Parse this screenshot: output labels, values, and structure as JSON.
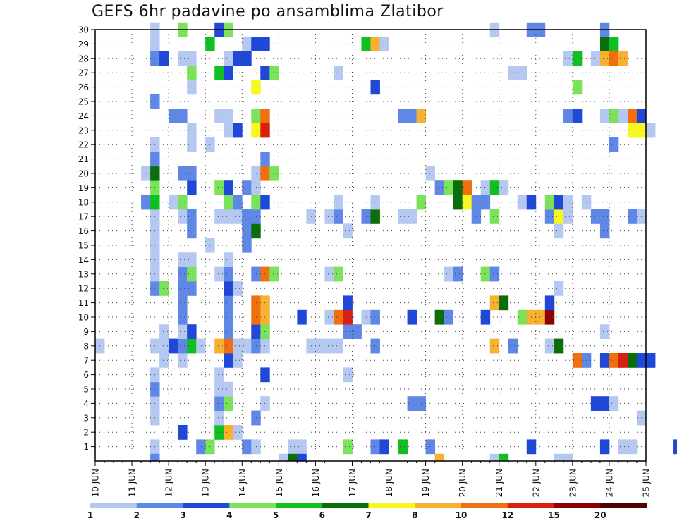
{
  "chart_data": {
    "type": "heatmap",
    "title": "GEFS 6hr padavine po ansamblima Zlatibor",
    "x_ticks": [
      "10 JUN",
      "11 JUN",
      "12 JUN",
      "13 JUN",
      "14 JUN",
      "15 JUN",
      "16 JUN",
      "17 JUN",
      "18 JUN",
      "19 JUN",
      "20 JUN",
      "21 JUN",
      "22 JUN",
      "23 JUN",
      "24 JUN",
      "25 JUN"
    ],
    "y_ticks": [
      1,
      2,
      3,
      4,
      5,
      6,
      7,
      8,
      9,
      10,
      11,
      12,
      13,
      14,
      15,
      16,
      17,
      18,
      19,
      20,
      21,
      22,
      23,
      24,
      25,
      26,
      27,
      28,
      29,
      30
    ],
    "y_range": [
      0,
      30
    ],
    "grid": "dotted",
    "steps_per_day": 4,
    "colorbar": {
      "labels": [
        "1",
        "2",
        "3",
        "4",
        "5",
        "6",
        "7",
        "8",
        "10",
        "12",
        "15",
        "20"
      ],
      "colors": [
        "#b5c8f2",
        "#5f88e6",
        "#1f48d8",
        "#7ae35a",
        "#10c020",
        "#0a6e0a",
        "#f8f820",
        "#f8b030",
        "#f07010",
        "#d82010",
        "#900000",
        "#500000"
      ]
    },
    "cells": [
      [
        1,
        6,
        1
      ],
      [
        1,
        11,
        2
      ],
      [
        1,
        12,
        4
      ],
      [
        1,
        16,
        2
      ],
      [
        1,
        17,
        1
      ],
      [
        1,
        21,
        1
      ],
      [
        1,
        22,
        1
      ],
      [
        1,
        27,
        4
      ],
      [
        1,
        30,
        2
      ],
      [
        1,
        31,
        3
      ],
      [
        1,
        33,
        5
      ],
      [
        1,
        36,
        2
      ],
      [
        1,
        47,
        3
      ],
      [
        1,
        55,
        3
      ],
      [
        1,
        57,
        1
      ],
      [
        1,
        58,
        1
      ],
      [
        1,
        63,
        3
      ],
      [
        1,
        70,
        1
      ],
      [
        1,
        71,
        2
      ],
      [
        1,
        72,
        2
      ],
      [
        2,
        9,
        3
      ],
      [
        2,
        13,
        5
      ],
      [
        2,
        14,
        8
      ],
      [
        2,
        15,
        1
      ],
      [
        3,
        6,
        1
      ],
      [
        3,
        13,
        1
      ],
      [
        3,
        17,
        2
      ],
      [
        3,
        59,
        1
      ],
      [
        4,
        6,
        1
      ],
      [
        4,
        13,
        2
      ],
      [
        4,
        14,
        4
      ],
      [
        4,
        18,
        1
      ],
      [
        4,
        34,
        2
      ],
      [
        4,
        35,
        2
      ],
      [
        4,
        54,
        3
      ],
      [
        4,
        55,
        3
      ],
      [
        4,
        56,
        1
      ],
      [
        5,
        6,
        2
      ],
      [
        5,
        13,
        1
      ],
      [
        5,
        14,
        1
      ],
      [
        6,
        6,
        1
      ],
      [
        6,
        13,
        1
      ],
      [
        6,
        18,
        3
      ],
      [
        6,
        27,
        1
      ],
      [
        7,
        7,
        1
      ],
      [
        7,
        9,
        1
      ],
      [
        7,
        14,
        3
      ],
      [
        7,
        15,
        1
      ],
      [
        7,
        52,
        9
      ],
      [
        7,
        53,
        2
      ],
      [
        7,
        55,
        3
      ],
      [
        7,
        56,
        9
      ],
      [
        7,
        57,
        10
      ],
      [
        7,
        58,
        6
      ],
      [
        7,
        59,
        3
      ],
      [
        7,
        60,
        3
      ],
      [
        8,
        0,
        1
      ],
      [
        8,
        6,
        1
      ],
      [
        8,
        7,
        1
      ],
      [
        8,
        8,
        3
      ],
      [
        8,
        9,
        2
      ],
      [
        8,
        10,
        5
      ],
      [
        8,
        11,
        1
      ],
      [
        8,
        13,
        8
      ],
      [
        8,
        14,
        9
      ],
      [
        8,
        15,
        1
      ],
      [
        8,
        16,
        1
      ],
      [
        8,
        17,
        2
      ],
      [
        8,
        18,
        1
      ],
      [
        8,
        23,
        1
      ],
      [
        8,
        24,
        1
      ],
      [
        8,
        25,
        1
      ],
      [
        8,
        26,
        1
      ],
      [
        8,
        30,
        2
      ],
      [
        8,
        43,
        8
      ],
      [
        8,
        45,
        2
      ],
      [
        8,
        49,
        1
      ],
      [
        8,
        50,
        6
      ],
      [
        9,
        7,
        1
      ],
      [
        9,
        9,
        1
      ],
      [
        9,
        10,
        3
      ],
      [
        9,
        14,
        2
      ],
      [
        9,
        17,
        3
      ],
      [
        9,
        18,
        4
      ],
      [
        9,
        27,
        2
      ],
      [
        9,
        28,
        2
      ],
      [
        9,
        55,
        1
      ],
      [
        10,
        9,
        2
      ],
      [
        10,
        14,
        2
      ],
      [
        10,
        17,
        9
      ],
      [
        10,
        18,
        8
      ],
      [
        10,
        22,
        3
      ],
      [
        10,
        25,
        1
      ],
      [
        10,
        26,
        9
      ],
      [
        10,
        27,
        10
      ],
      [
        10,
        29,
        1
      ],
      [
        10,
        30,
        2
      ],
      [
        10,
        34,
        3
      ],
      [
        10,
        37,
        6
      ],
      [
        10,
        38,
        2
      ],
      [
        10,
        42,
        3
      ],
      [
        10,
        46,
        4
      ],
      [
        10,
        47,
        8
      ],
      [
        10,
        48,
        8
      ],
      [
        10,
        49,
        11
      ],
      [
        11,
        9,
        2
      ],
      [
        11,
        14,
        2
      ],
      [
        11,
        17,
        9
      ],
      [
        11,
        18,
        8
      ],
      [
        11,
        27,
        3
      ],
      [
        11,
        43,
        8
      ],
      [
        11,
        44,
        6
      ],
      [
        11,
        49,
        3
      ],
      [
        12,
        6,
        2
      ],
      [
        12,
        7,
        4
      ],
      [
        12,
        9,
        2
      ],
      [
        12,
        10,
        2
      ],
      [
        12,
        14,
        3
      ],
      [
        12,
        15,
        1
      ],
      [
        12,
        50,
        1
      ],
      [
        13,
        6,
        1
      ],
      [
        13,
        9,
        2
      ],
      [
        13,
        10,
        4
      ],
      [
        13,
        13,
        1
      ],
      [
        13,
        14,
        2
      ],
      [
        13,
        17,
        2
      ],
      [
        13,
        18,
        9
      ],
      [
        13,
        19,
        4
      ],
      [
        13,
        25,
        1
      ],
      [
        13,
        26,
        4
      ],
      [
        13,
        38,
        1
      ],
      [
        13,
        39,
        2
      ],
      [
        13,
        42,
        4
      ],
      [
        13,
        43,
        2
      ],
      [
        14,
        6,
        1
      ],
      [
        14,
        9,
        1
      ],
      [
        14,
        10,
        1
      ],
      [
        14,
        14,
        1
      ],
      [
        15,
        6,
        1
      ],
      [
        15,
        12,
        1
      ],
      [
        15,
        16,
        2
      ],
      [
        16,
        6,
        1
      ],
      [
        16,
        10,
        2
      ],
      [
        16,
        16,
        2
      ],
      [
        16,
        17,
        6
      ],
      [
        16,
        27,
        1
      ],
      [
        16,
        50,
        1
      ],
      [
        16,
        55,
        2
      ],
      [
        17,
        6,
        1
      ],
      [
        17,
        9,
        1
      ],
      [
        17,
        10,
        2
      ],
      [
        17,
        13,
        1
      ],
      [
        17,
        14,
        1
      ],
      [
        17,
        15,
        1
      ],
      [
        17,
        16,
        2
      ],
      [
        17,
        17,
        2
      ],
      [
        17,
        23,
        1
      ],
      [
        17,
        25,
        1
      ],
      [
        17,
        26,
        2
      ],
      [
        17,
        29,
        2
      ],
      [
        17,
        30,
        6
      ],
      [
        17,
        33,
        1
      ],
      [
        17,
        34,
        1
      ],
      [
        17,
        41,
        2
      ],
      [
        17,
        43,
        4
      ],
      [
        17,
        49,
        2
      ],
      [
        17,
        50,
        7
      ],
      [
        17,
        51,
        1
      ],
      [
        17,
        54,
        2
      ],
      [
        17,
        55,
        2
      ],
      [
        17,
        58,
        2
      ],
      [
        17,
        59,
        1
      ],
      [
        18,
        5,
        2
      ],
      [
        18,
        6,
        5
      ],
      [
        18,
        8,
        1
      ],
      [
        18,
        9,
        4
      ],
      [
        18,
        14,
        4
      ],
      [
        18,
        15,
        2
      ],
      [
        18,
        17,
        4
      ],
      [
        18,
        18,
        3
      ],
      [
        18,
        26,
        1
      ],
      [
        18,
        30,
        1
      ],
      [
        18,
        35,
        4
      ],
      [
        18,
        39,
        6
      ],
      [
        18,
        40,
        7
      ],
      [
        18,
        41,
        2
      ],
      [
        18,
        42,
        2
      ],
      [
        18,
        46,
        1
      ],
      [
        18,
        47,
        3
      ],
      [
        18,
        49,
        4
      ],
      [
        18,
        50,
        3
      ],
      [
        18,
        51,
        1
      ],
      [
        18,
        53,
        1
      ],
      [
        19,
        6,
        4
      ],
      [
        19,
        10,
        3
      ],
      [
        19,
        13,
        4
      ],
      [
        19,
        14,
        3
      ],
      [
        19,
        16,
        2
      ],
      [
        19,
        17,
        1
      ],
      [
        19,
        37,
        2
      ],
      [
        19,
        38,
        4
      ],
      [
        19,
        39,
        6
      ],
      [
        19,
        40,
        9
      ],
      [
        19,
        42,
        1
      ],
      [
        19,
        43,
        5
      ],
      [
        19,
        44,
        1
      ],
      [
        20,
        5,
        1
      ],
      [
        20,
        6,
        6
      ],
      [
        20,
        9,
        2
      ],
      [
        20,
        10,
        2
      ],
      [
        20,
        17,
        1
      ],
      [
        20,
        18,
        9
      ],
      [
        20,
        19,
        4
      ],
      [
        20,
        36,
        1
      ],
      [
        21,
        6,
        2
      ],
      [
        21,
        18,
        2
      ],
      [
        22,
        6,
        1
      ],
      [
        22,
        10,
        1
      ],
      [
        22,
        12,
        1
      ],
      [
        22,
        56,
        2
      ],
      [
        23,
        10,
        1
      ],
      [
        23,
        14,
        1
      ],
      [
        23,
        15,
        3
      ],
      [
        23,
        17,
        7
      ],
      [
        23,
        18,
        10
      ],
      [
        23,
        58,
        7
      ],
      [
        23,
        59,
        7
      ],
      [
        23,
        60,
        1
      ],
      [
        24,
        8,
        2
      ],
      [
        24,
        9,
        2
      ],
      [
        24,
        13,
        1
      ],
      [
        24,
        14,
        1
      ],
      [
        24,
        17,
        4
      ],
      [
        24,
        18,
        9
      ],
      [
        24,
        33,
        2
      ],
      [
        24,
        34,
        2
      ],
      [
        24,
        35,
        8
      ],
      [
        24,
        51,
        2
      ],
      [
        24,
        52,
        3
      ],
      [
        24,
        55,
        1
      ],
      [
        24,
        56,
        4
      ],
      [
        24,
        57,
        1
      ],
      [
        24,
        58,
        9
      ],
      [
        24,
        59,
        3
      ],
      [
        25,
        6,
        2
      ],
      [
        26,
        10,
        1
      ],
      [
        26,
        17,
        7
      ],
      [
        26,
        30,
        3
      ],
      [
        26,
        52,
        4
      ],
      [
        27,
        10,
        4
      ],
      [
        27,
        13,
        5
      ],
      [
        27,
        14,
        3
      ],
      [
        27,
        18,
        3
      ],
      [
        27,
        19,
        4
      ],
      [
        27,
        26,
        1
      ],
      [
        27,
        45,
        1
      ],
      [
        27,
        46,
        1
      ],
      [
        28,
        6,
        2
      ],
      [
        28,
        7,
        3
      ],
      [
        28,
        9,
        1
      ],
      [
        28,
        10,
        1
      ],
      [
        28,
        14,
        1
      ],
      [
        28,
        15,
        3
      ],
      [
        28,
        16,
        3
      ],
      [
        28,
        51,
        1
      ],
      [
        28,
        52,
        5
      ],
      [
        28,
        54,
        1
      ],
      [
        28,
        55,
        8
      ],
      [
        28,
        56,
        9
      ],
      [
        28,
        57,
        8
      ],
      [
        29,
        6,
        1
      ],
      [
        29,
        12,
        5
      ],
      [
        29,
        16,
        1
      ],
      [
        29,
        17,
        3
      ],
      [
        29,
        18,
        3
      ],
      [
        29,
        29,
        5
      ],
      [
        29,
        30,
        8
      ],
      [
        29,
        31,
        1
      ],
      [
        29,
        55,
        6
      ],
      [
        29,
        56,
        5
      ],
      [
        30,
        6,
        1
      ],
      [
        30,
        9,
        4
      ],
      [
        30,
        13,
        3
      ],
      [
        30,
        14,
        4
      ],
      [
        30,
        43,
        1
      ],
      [
        30,
        47,
        2
      ],
      [
        30,
        48,
        2
      ],
      [
        30,
        55,
        2
      ]
    ],
    "clipped_top_row": [
      [
        6,
        2
      ],
      [
        20,
        1
      ],
      [
        21,
        6
      ],
      [
        22,
        3
      ],
      [
        37,
        8
      ],
      [
        43,
        1
      ],
      [
        44,
        5
      ],
      [
        50,
        1
      ],
      [
        51,
        1
      ]
    ]
  }
}
